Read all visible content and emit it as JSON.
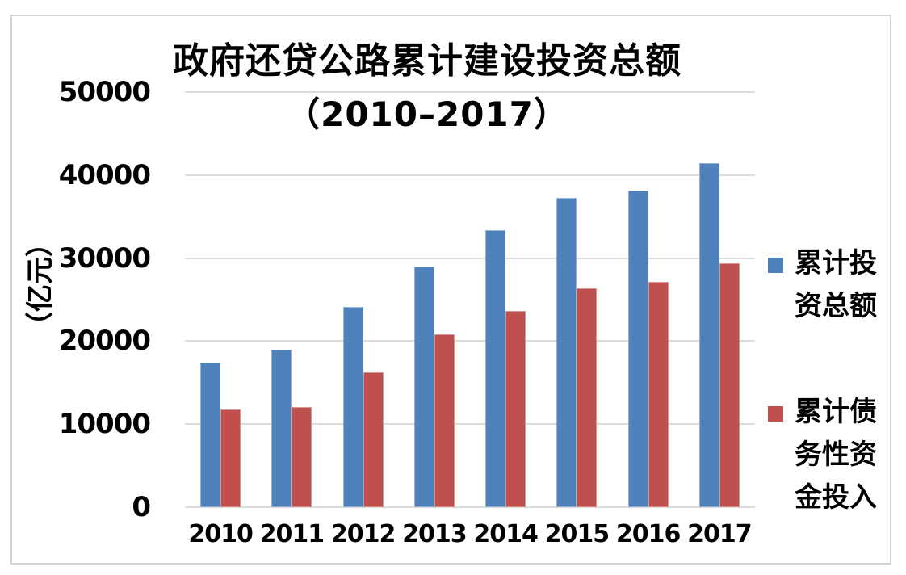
{
  "chart_data": {
    "type": "bar",
    "title": "政府还贷公路累计建设投资总额",
    "subtitle": "（2010–2017）",
    "ylabel": "（亿元）",
    "categories": [
      "2010",
      "2011",
      "2012",
      "2013",
      "2014",
      "2015",
      "2016",
      "2017"
    ],
    "series": [
      {
        "name": "累计投资总额",
        "color": "#4F81BD",
        "values": [
          17400,
          19000,
          24100,
          29000,
          33400,
          37300,
          38100,
          41400
        ]
      },
      {
        "name": "累计债务性资金投入",
        "color": "#C0504D",
        "values": [
          11800,
          12100,
          16200,
          20800,
          23600,
          26400,
          27100,
          29400
        ]
      }
    ],
    "ylim": [
      0,
      50000
    ],
    "yticks": [
      0,
      10000,
      20000,
      30000,
      40000,
      50000
    ],
    "grid": true,
    "legend_position": "right",
    "gridline_color": "#dcdcdc",
    "frame_color": "#d2d2d2",
    "text_color": "#000000"
  }
}
